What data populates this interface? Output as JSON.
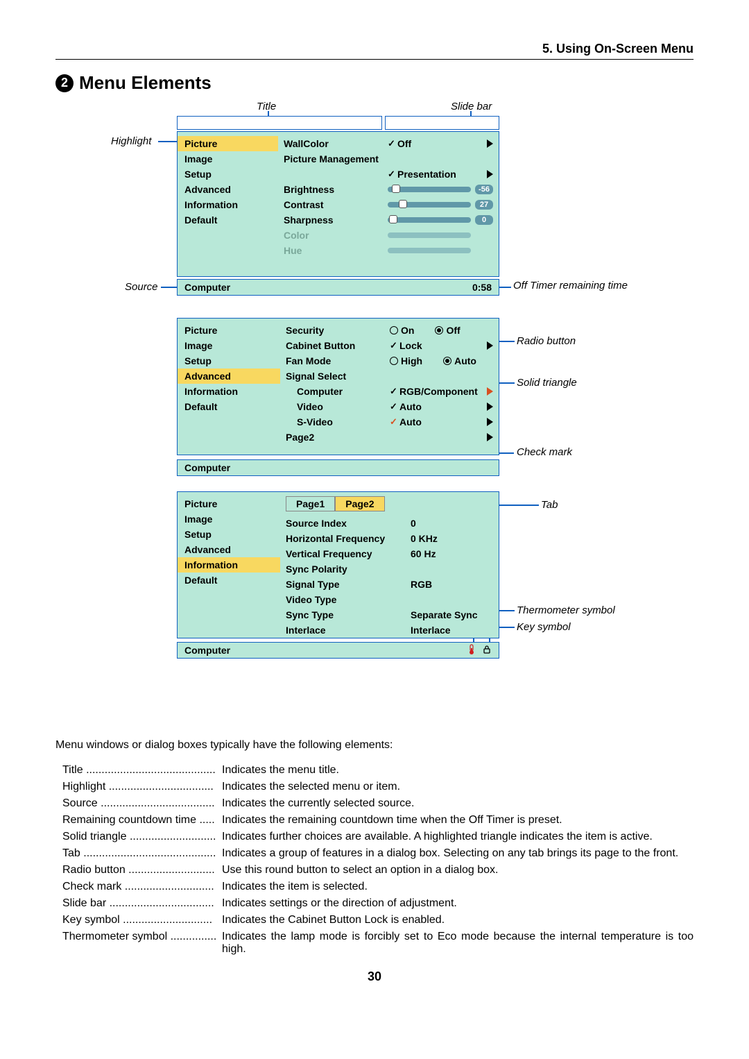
{
  "chapter": "5. Using On-Screen Menu",
  "section_number": "2",
  "section_title": "Menu Elements",
  "callouts": {
    "title": "Title",
    "slidebar": "Slide bar",
    "highlight": "Highlight",
    "source": "Source",
    "offtimer": "Off Timer remaining time",
    "radiobutton": "Radio button",
    "solidtriangle": "Solid triangle",
    "checkmark": "Check mark",
    "tab": "Tab",
    "thermometer": "Thermometer symbol",
    "keysymbol": "Key symbol"
  },
  "menu1": {
    "left": [
      "Picture",
      "Image",
      "Setup",
      "Advanced",
      "Information",
      "Default"
    ],
    "highlight_idx": 0,
    "right": {
      "wallcolor_label": "WallColor",
      "wallcolor_val": "Off",
      "picmgmt_label": "Picture Management",
      "picmgmt_val": "Presentation",
      "brightness": "Brightness",
      "contrast": "Contrast",
      "sharpness": "Sharpness",
      "color": "Color",
      "hue": "Hue",
      "brightness_val": "-56",
      "contrast_val": "27",
      "sharpness_val": "0"
    },
    "status_source": "Computer",
    "status_time": "0:58"
  },
  "menu2": {
    "left": [
      "Picture",
      "Image",
      "Setup",
      "Advanced",
      "Information",
      "Default"
    ],
    "highlight_idx": 3,
    "right": {
      "security": "Security",
      "security_on": "On",
      "security_off": "Off",
      "cabinet": "Cabinet Button",
      "cabinet_val": "Lock",
      "fan": "Fan Mode",
      "fan_high": "High",
      "fan_auto": "Auto",
      "sigsel": "Signal Select",
      "computer": "Computer",
      "computer_val": "RGB/Component",
      "video": "Video",
      "video_val": "Auto",
      "svideo": "S-Video",
      "svideo_val": "Auto",
      "page2": "Page2"
    },
    "status_source": "Computer"
  },
  "menu3": {
    "left": [
      "Picture",
      "Image",
      "Setup",
      "Advanced",
      "Information",
      "Default"
    ],
    "highlight_idx": 4,
    "tabs": [
      "Page1",
      "Page2"
    ],
    "active_tab": 1,
    "right": {
      "srcidx": "Source Index",
      "srcidx_v": "0",
      "hfreq": "Horizontal Frequency",
      "hfreq_v": "0 KHz",
      "vfreq": "Vertical Frequency",
      "vfreq_v": "60 Hz",
      "syncpol": "Sync Polarity",
      "sigtype": "Signal Type",
      "sigtype_v": "RGB",
      "vidtype": "Video Type",
      "synctype": "Sync Type",
      "synctype_v": "Separate Sync",
      "interlace": "Interlace",
      "interlace_v": "Interlace"
    },
    "status_source": "Computer"
  },
  "intro": "Menu windows or dialog boxes typically have the following elements:",
  "definitions": [
    {
      "term": "Title",
      "dots": "..........................................",
      "desc": "Indicates the menu title."
    },
    {
      "term": "Highlight",
      "dots": "..................................",
      "desc": "Indicates the selected menu or item."
    },
    {
      "term": "Source",
      "dots": ".....................................",
      "desc": "Indicates the currently selected source."
    },
    {
      "term": "Remaining countdown time",
      "dots": " .....",
      "desc": "Indicates the remaining countdown time when the Off Timer is preset."
    },
    {
      "term": "Solid triangle",
      "dots": "............................",
      "desc": "Indicates further choices are available. A highlighted triangle indicates the item is active."
    },
    {
      "term": "Tab",
      "dots": "...........................................",
      "desc": "Indicates a group of features in a dialog box. Selecting on any tab brings its page to the front."
    },
    {
      "term": "Radio button",
      "dots": "............................",
      "desc": "Use this round button to select an option in a dialog box."
    },
    {
      "term": "Check mark",
      "dots": ".............................",
      "desc": "Indicates the item is selected."
    },
    {
      "term": "Slide bar",
      "dots": "..................................",
      "desc": "Indicates settings or the direction of adjustment."
    },
    {
      "term": "Key symbol",
      "dots": ".............................",
      "desc": "Indicates the Cabinet Button Lock is enabled."
    },
    {
      "term": "Thermometer symbol",
      "dots": "...............",
      "desc": "Indicates the lamp mode is forcibly set to Eco mode because the internal temperature is too high."
    }
  ],
  "page_number": "30",
  "colors": {
    "menu_bg": "#b8e8d8",
    "highlight_bg": "#f8d860",
    "line": "#1060c0",
    "slider_track": "#6098a8"
  }
}
